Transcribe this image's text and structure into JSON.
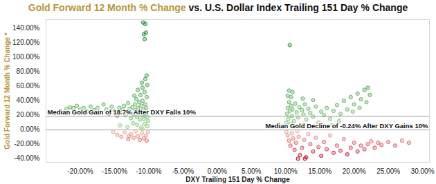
{
  "chart_data": {
    "type": "scatter",
    "title": "Gold Forward 12 Month % Change vs. U.S. Dollar Index Trailing 151 Day % Change",
    "x_label": "DXY Trailing 151 Day % Change",
    "y_label": "Gold Forward 12 Month % Change *",
    "grid": false,
    "xlim": [
      -25,
      31
    ],
    "ylim": [
      -45,
      152
    ],
    "xticks": [
      {
        "value": -20,
        "label": "-20.00%"
      },
      {
        "value": -15,
        "label": "-15.00%"
      },
      {
        "value": -10,
        "label": "-10.00%"
      },
      {
        "value": -5,
        "label": "-5.00%"
      },
      {
        "value": 0,
        "label": "0.00%"
      },
      {
        "value": 5,
        "label": "5.00%"
      },
      {
        "value": 10,
        "label": "10.00%"
      },
      {
        "value": 15,
        "label": "15.00%"
      },
      {
        "value": 20,
        "label": "20.00%"
      },
      {
        "value": 25,
        "label": "25.00%"
      },
      {
        "value": 30,
        "label": "30.00%"
      }
    ],
    "yticks": [
      {
        "value": -40,
        "label": "-40.00%"
      },
      {
        "value": -20,
        "label": "-20.00%"
      },
      {
        "value": 0,
        "label": "0.00%"
      },
      {
        "value": 20,
        "label": "20.00%"
      },
      {
        "value": 40,
        "label": "40.00%"
      },
      {
        "value": 60,
        "label": "60.00%"
      },
      {
        "value": 80,
        "label": "80.00%"
      },
      {
        "value": 100,
        "label": "100.00%"
      },
      {
        "value": 120,
        "label": "120.00%"
      },
      {
        "value": 140,
        "label": "140.00%"
      }
    ],
    "annotations": [
      {
        "text": "Median Gold Gain of 18.7% After DXY Falls 10%",
        "y": 18.7
      },
      {
        "text": "Median Gold Decline of -0.24% After DXY Gains 10%",
        "y": -0.24
      }
    ],
    "x": [
      -10.1,
      -10.2,
      -10.3,
      -10.4,
      -10.5,
      -10.6,
      -10.7,
      -10.8,
      -10.9,
      -11.0,
      -11.1,
      -11.2,
      -11.3,
      -11.4,
      -11.5,
      -11.6,
      -11.7,
      -11.8,
      -11.9,
      -12.0,
      -12.2,
      -12.4,
      -12.6,
      -12.8,
      -13.0,
      -13.2,
      -13.4,
      -13.6,
      -13.8,
      -14.0,
      -14.3,
      -14.6,
      -15.0,
      -15.4,
      -15.8,
      -16.2,
      -16.6,
      -17.0,
      -17.5,
      -18.0,
      -18.5,
      -19.0,
      -19.5,
      -20.0,
      -20.5,
      -21.0,
      -21.5,
      -22.0,
      -10.3,
      -10.6,
      -10.9,
      -11.2,
      -11.6,
      -12.1,
      -10.2,
      -10.5,
      -10.3,
      -11.0,
      -10.8,
      -10.5,
      -10.7,
      -10.4,
      -10.6,
      -10.2,
      -10.6,
      -11.1,
      -11.7,
      -12.3,
      -13.1,
      -14.2,
      -10.9,
      -10.1,
      -10.4,
      -10.7,
      -11.0,
      -11.3,
      -11.6,
      -11.9,
      -12.2,
      -12.6,
      -13.0,
      -13.5,
      -14.0,
      -14.6,
      -15.2,
      -10.3,
      -12.9,
      10.1,
      10.2,
      10.3,
      10.4,
      10.5,
      10.6,
      10.7,
      10.8,
      10.9,
      11.0,
      11.2,
      11.4,
      11.6,
      11.8,
      12.0,
      12.2,
      12.4,
      12.6,
      12.8,
      13.0,
      13.3,
      13.6,
      14.0,
      14.4,
      14.8,
      15.2,
      15.6,
      16.0,
      16.5,
      17.0,
      17.5,
      18.0,
      18.5,
      19.0,
      19.5,
      20.0,
      20.5,
      21.0,
      21.5,
      22.0,
      22.3,
      21.8,
      20.8,
      19.8,
      17.8,
      16.8,
      15.8,
      10.3,
      10.5,
      10.8,
      11.0,
      10.6,
      12.5,
      14.0,
      10.1,
      10.3,
      10.5,
      10.7,
      10.9,
      11.1,
      11.3,
      11.5,
      11.7,
      11.9,
      12.1,
      12.4,
      12.7,
      13.0,
      13.3,
      13.6,
      14.0,
      14.4,
      14.8,
      15.2,
      15.6,
      16.0,
      16.5,
      17.0,
      17.5,
      18.0,
      18.5,
      19.0,
      19.5,
      20.0,
      20.5,
      21.0,
      21.5,
      22.0,
      22.5,
      23.0,
      23.5,
      24.0,
      25.0,
      26.0,
      27.0,
      28.0,
      11.8,
      12.8
    ],
    "values": [
      12,
      18,
      25,
      30,
      35,
      22,
      15,
      28,
      40,
      20,
      33,
      26,
      14,
      38,
      24,
      30,
      18,
      42,
      27,
      35,
      22,
      31,
      16,
      29,
      37,
      25,
      20,
      33,
      28,
      23,
      30,
      19,
      26,
      32,
      22,
      28,
      35,
      24,
      30,
      27,
      32,
      25,
      30,
      28,
      33,
      30,
      31,
      29,
      45,
      52,
      58,
      48,
      55,
      47,
      62,
      70,
      75,
      65,
      148,
      146,
      132,
      134,
      125,
      5,
      8,
      3,
      7,
      9,
      4,
      6,
      1,
      -3,
      -8,
      -12,
      -5,
      -14,
      -9,
      -2,
      -11,
      -6,
      -13,
      -4,
      -10,
      -7,
      -3,
      -15,
      -9,
      10,
      22,
      30,
      15,
      38,
      26,
      8,
      33,
      19,
      28,
      12,
      36,
      24,
      17,
      31,
      6,
      27,
      21,
      35,
      14,
      29,
      23,
      18,
      32,
      10,
      25,
      20,
      30,
      15,
      26,
      34,
      22,
      40,
      28,
      45,
      35,
      50,
      42,
      55,
      58,
      48,
      38,
      30,
      25,
      12,
      6,
      4,
      47,
      54,
      45,
      52,
      117,
      43,
      41,
      -3,
      -8,
      -15,
      -22,
      -5,
      -12,
      -28,
      -18,
      -2,
      -10,
      -35,
      -25,
      -14,
      -38,
      -6,
      -20,
      -30,
      -11,
      -24,
      -36,
      -17,
      -27,
      -8,
      -32,
      -22,
      -29,
      -13,
      -34,
      -25,
      -18,
      -30,
      -22,
      -27,
      -20,
      -16,
      -25,
      -18,
      -21,
      -17,
      -22,
      -15,
      -18,
      -40,
      -40
    ]
  }
}
